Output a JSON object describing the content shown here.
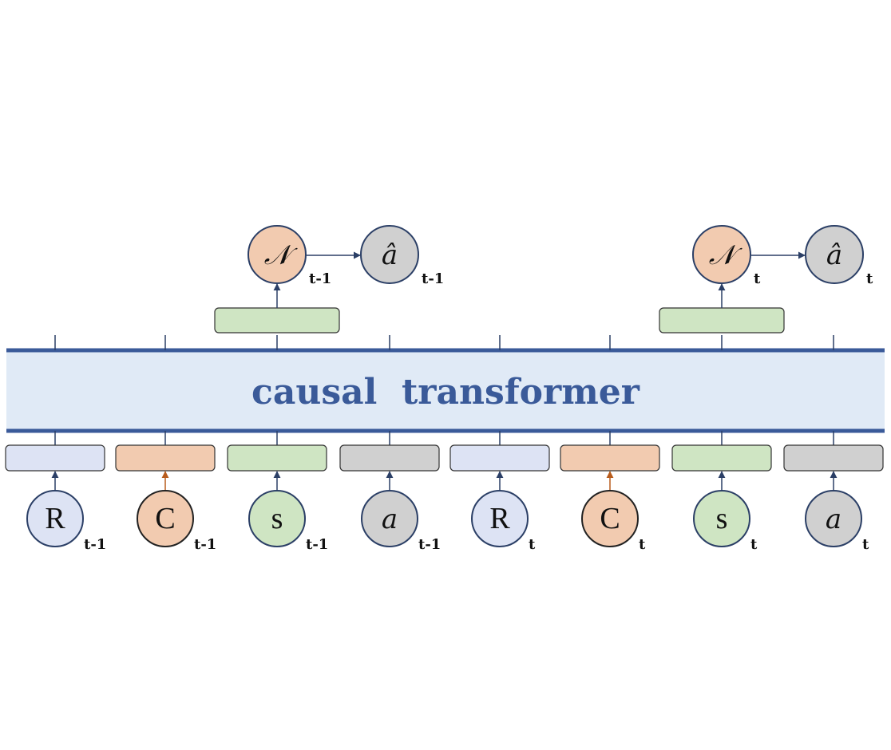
{
  "transformer": {
    "label": "causal  transformer"
  },
  "inputs": [
    {
      "symbol": "R",
      "subscript": "t-1",
      "kind": "return"
    },
    {
      "symbol": "C",
      "subscript": "t-1",
      "kind": "cost"
    },
    {
      "symbol": "s",
      "subscript": "t-1",
      "kind": "state"
    },
    {
      "symbol": "a",
      "subscript": "t-1",
      "kind": "action"
    },
    {
      "symbol": "R",
      "subscript": "t",
      "kind": "return"
    },
    {
      "symbol": "C",
      "subscript": "t",
      "kind": "cost"
    },
    {
      "symbol": "s",
      "subscript": "t",
      "kind": "state"
    },
    {
      "symbol": "a",
      "subscript": "t",
      "kind": "action"
    }
  ],
  "outputs": [
    {
      "dist_symbol": "𝒩",
      "dist_subscript": "t-1",
      "action_symbol": "â",
      "action_subscript": "t-1"
    },
    {
      "dist_symbol": "𝒩",
      "dist_subscript": "t",
      "action_symbol": "â",
      "action_subscript": "t"
    }
  ],
  "colors": {
    "return_fill": "#dde3f4",
    "cost_fill": "#f2cbb0",
    "state_fill": "#cfe5c3",
    "action_fill": "#d0d0d0",
    "transformer_fill": "#e0eaf6",
    "transformer_border": "#3a5a99",
    "stroke": "#2b3f66",
    "cost_arrow": "#b85c1c"
  }
}
